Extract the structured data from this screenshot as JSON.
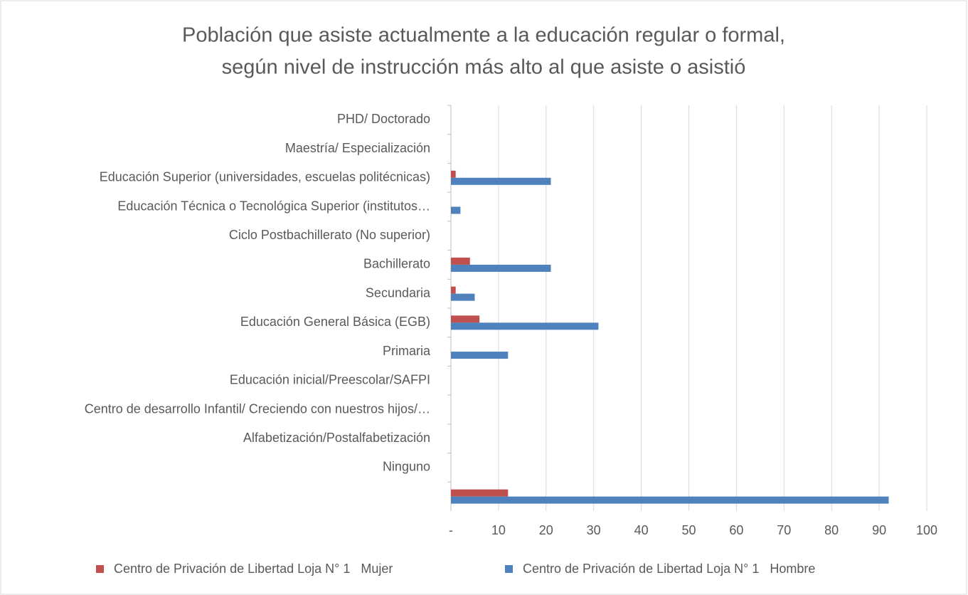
{
  "chart_data": {
    "type": "hbar",
    "title": [
      "Población que asiste actualmente a la educación regular o formal,",
      "según nivel de instrucción más alto al que asiste o asistió"
    ],
    "categories": [
      "PHD/ Doctorado",
      "Maestría/ Especialización",
      "Educación Superior (universidades, escuelas politécnicas)",
      "Educación Técnica o Tecnológica Superior (institutos…",
      "Ciclo Postbachillerato (No superior)",
      "Bachillerato",
      "Secundaria",
      "Educación General Básica (EGB)",
      "Primaria",
      "Educación inicial/Preescolar/SAFPI",
      "Centro de desarrollo Infantil/ Creciendo con nuestros hijos/…",
      "Alfabetización/Postalfabetización",
      "Ninguno",
      null
    ],
    "series": [
      {
        "name": "Centro de Privación de Libertad Loja N° 1   Mujer",
        "color": "#c0504d",
        "values": [
          0,
          0,
          1,
          0,
          0,
          4,
          1,
          6,
          0,
          0,
          0,
          0,
          0,
          12
        ]
      },
      {
        "name": "Centro de Privación de Libertad Loja N° 1   Hombre",
        "color": "#4f81bd",
        "values": [
          0,
          0,
          21,
          2,
          0,
          21,
          5,
          31,
          12,
          0,
          0,
          0,
          0,
          92
        ]
      }
    ],
    "xlim": [
      0,
      100
    ],
    "xticks": [
      {
        "value": 0,
        "label": "-"
      },
      10,
      20,
      30,
      40,
      50,
      60,
      70,
      80,
      90,
      100
    ],
    "grid": true,
    "legend": "bottom"
  }
}
